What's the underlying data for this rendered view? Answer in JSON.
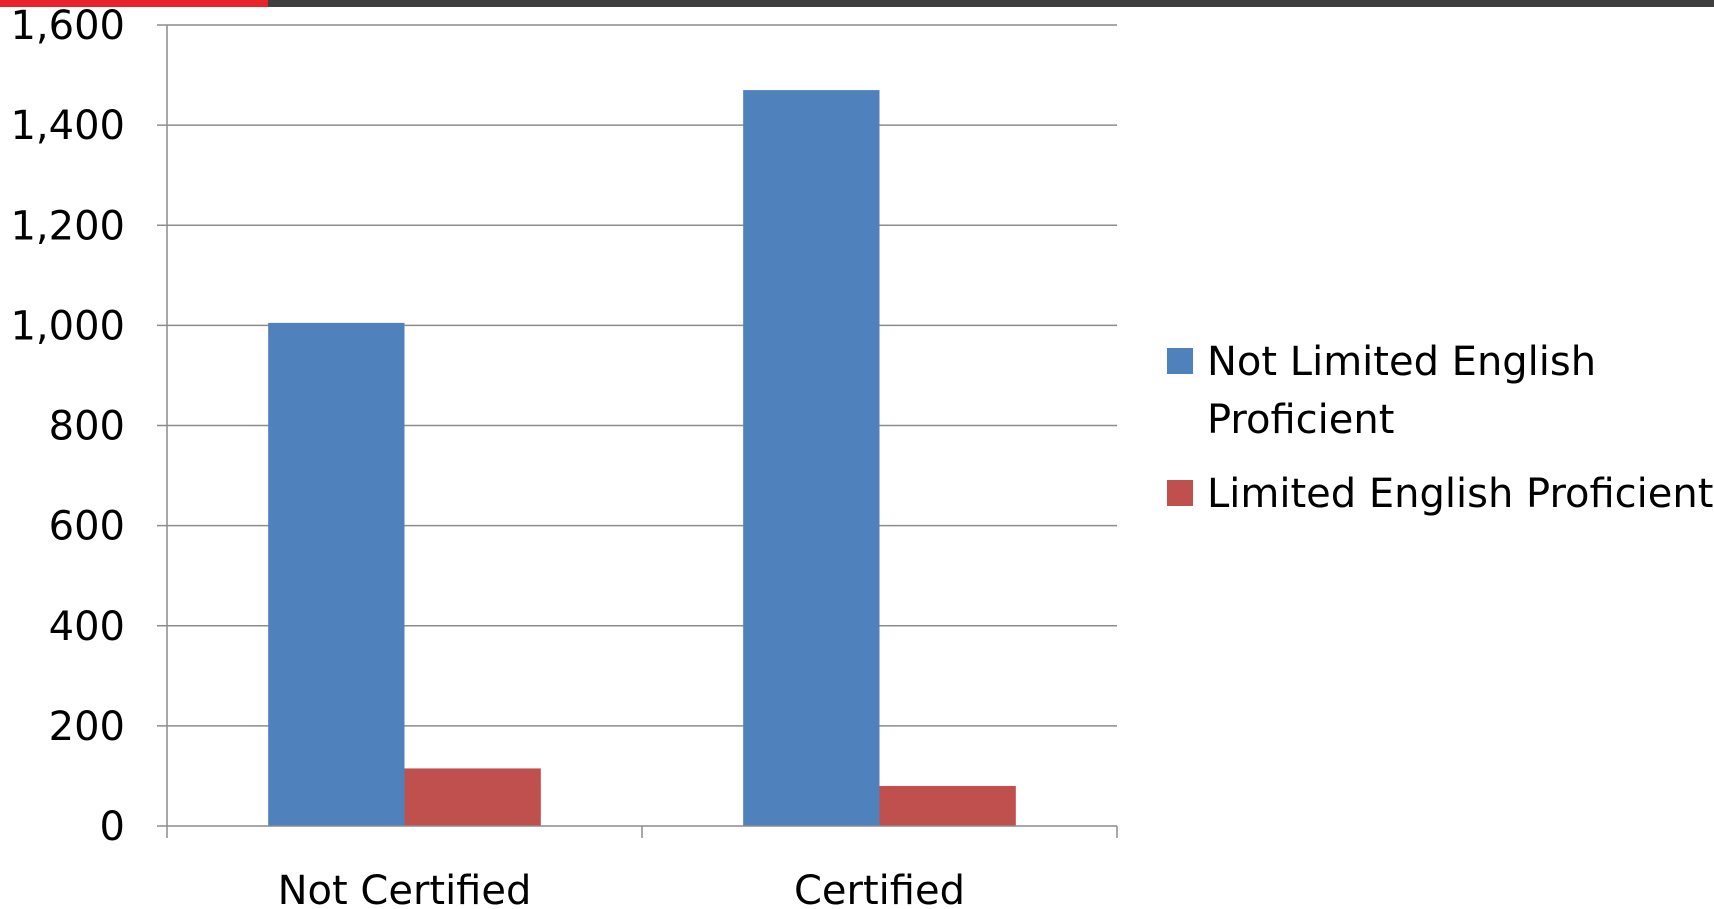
{
  "header": {
    "accent_color": "#e8232a",
    "bar_color": "#3f3f3f"
  },
  "chart_data": {
    "type": "bar",
    "categories": [
      "Not Certified",
      "Certified"
    ],
    "series": [
      {
        "name": "Not Limited English Proficient",
        "values": [
          1005,
          1470
        ],
        "color": "#4f81bd"
      },
      {
        "name": "Limited English Proficient",
        "values": [
          115,
          80
        ],
        "color": "#c0504d"
      }
    ],
    "title": "",
    "xlabel": "",
    "ylabel": "",
    "ylim": [
      0,
      1600
    ],
    "yticks": [
      0,
      200,
      400,
      600,
      800,
      1000,
      1200,
      1400,
      1600
    ],
    "ytick_labels": [
      "0",
      "200",
      "400",
      "600",
      "800",
      "1,000",
      "1,200",
      "1,400",
      "1,600"
    ],
    "grid": true,
    "legend_position": "right",
    "legend_entries": [
      {
        "lines": [
          "Not Limited English",
          "Proficient"
        ],
        "color": "#4f81bd"
      },
      {
        "lines": [
          "Limited English Proficient"
        ],
        "color": "#c0504d"
      }
    ]
  }
}
